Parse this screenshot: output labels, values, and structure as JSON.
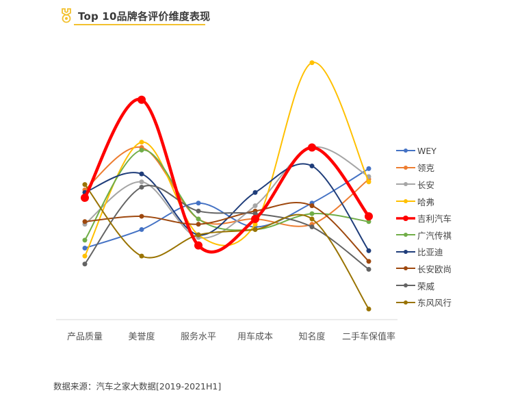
{
  "header": {
    "title": "Top 10品牌各评价维度表现",
    "icon": "medal-icon",
    "accent_color": "#f2c12e"
  },
  "footer": {
    "source": "数据来源：汽车之家大数据[2019-2021H1]"
  },
  "chart_data": {
    "type": "line",
    "smooth": true,
    "title": "Top 10品牌各评价维度表现",
    "xlabel": "",
    "ylabel": "",
    "y_axis_visible": false,
    "grid": false,
    "legend_position": "right",
    "ylim": [
      0,
      100
    ],
    "note": "No y-axis scale shown; values are relative scores estimated from vertical position (0 = baseline, 100 = top of plot).",
    "categories": [
      "产品质量",
      "美誉度",
      "服务水平",
      "用车成本",
      "知名度",
      "二手车保值率"
    ],
    "series": [
      {
        "name": "WEY",
        "color": "#4472c4",
        "width": 2,
        "marker": 3.5,
        "values": [
          27,
          34,
          44,
          35,
          44,
          57
        ]
      },
      {
        "name": "领克",
        "color": "#ed7d31",
        "width": 2,
        "marker": 3.5,
        "values": [
          49,
          65,
          38,
          38,
          36,
          53
        ]
      },
      {
        "name": "长安",
        "color": "#a5a5a5",
        "width": 2,
        "marker": 3.5,
        "values": [
          36,
          52,
          31,
          43,
          65,
          54
        ]
      },
      {
        "name": "哈弗",
        "color": "#ffc000",
        "width": 2,
        "marker": 3.5,
        "values": [
          24,
          67,
          32,
          36,
          97,
          52
        ]
      },
      {
        "name": "吉利汽车",
        "color": "#ff0000",
        "width": 4.5,
        "marker": 6,
        "values": [
          46,
          83,
          28,
          38,
          65,
          39
        ]
      },
      {
        "name": "广汽传祺",
        "color": "#70ad47",
        "width": 2,
        "marker": 3.5,
        "values": [
          30,
          64,
          38,
          34,
          40,
          37
        ]
      },
      {
        "name": "比亚迪",
        "color": "#1f3d7a",
        "width": 2,
        "marker": 3.5,
        "values": [
          48,
          55,
          32,
          48,
          58,
          26
        ]
      },
      {
        "name": "长安欧尚",
        "color": "#9e480e",
        "width": 2,
        "marker": 3.5,
        "values": [
          37,
          39,
          36,
          41,
          43,
          22
        ]
      },
      {
        "name": "荣威",
        "color": "#636363",
        "width": 2,
        "marker": 3.5,
        "values": [
          21,
          50,
          41,
          40,
          35,
          19
        ]
      },
      {
        "name": "东风风行",
        "color": "#997300",
        "width": 2,
        "marker": 3.5,
        "values": [
          51,
          24,
          32,
          34,
          38,
          4
        ]
      }
    ]
  }
}
